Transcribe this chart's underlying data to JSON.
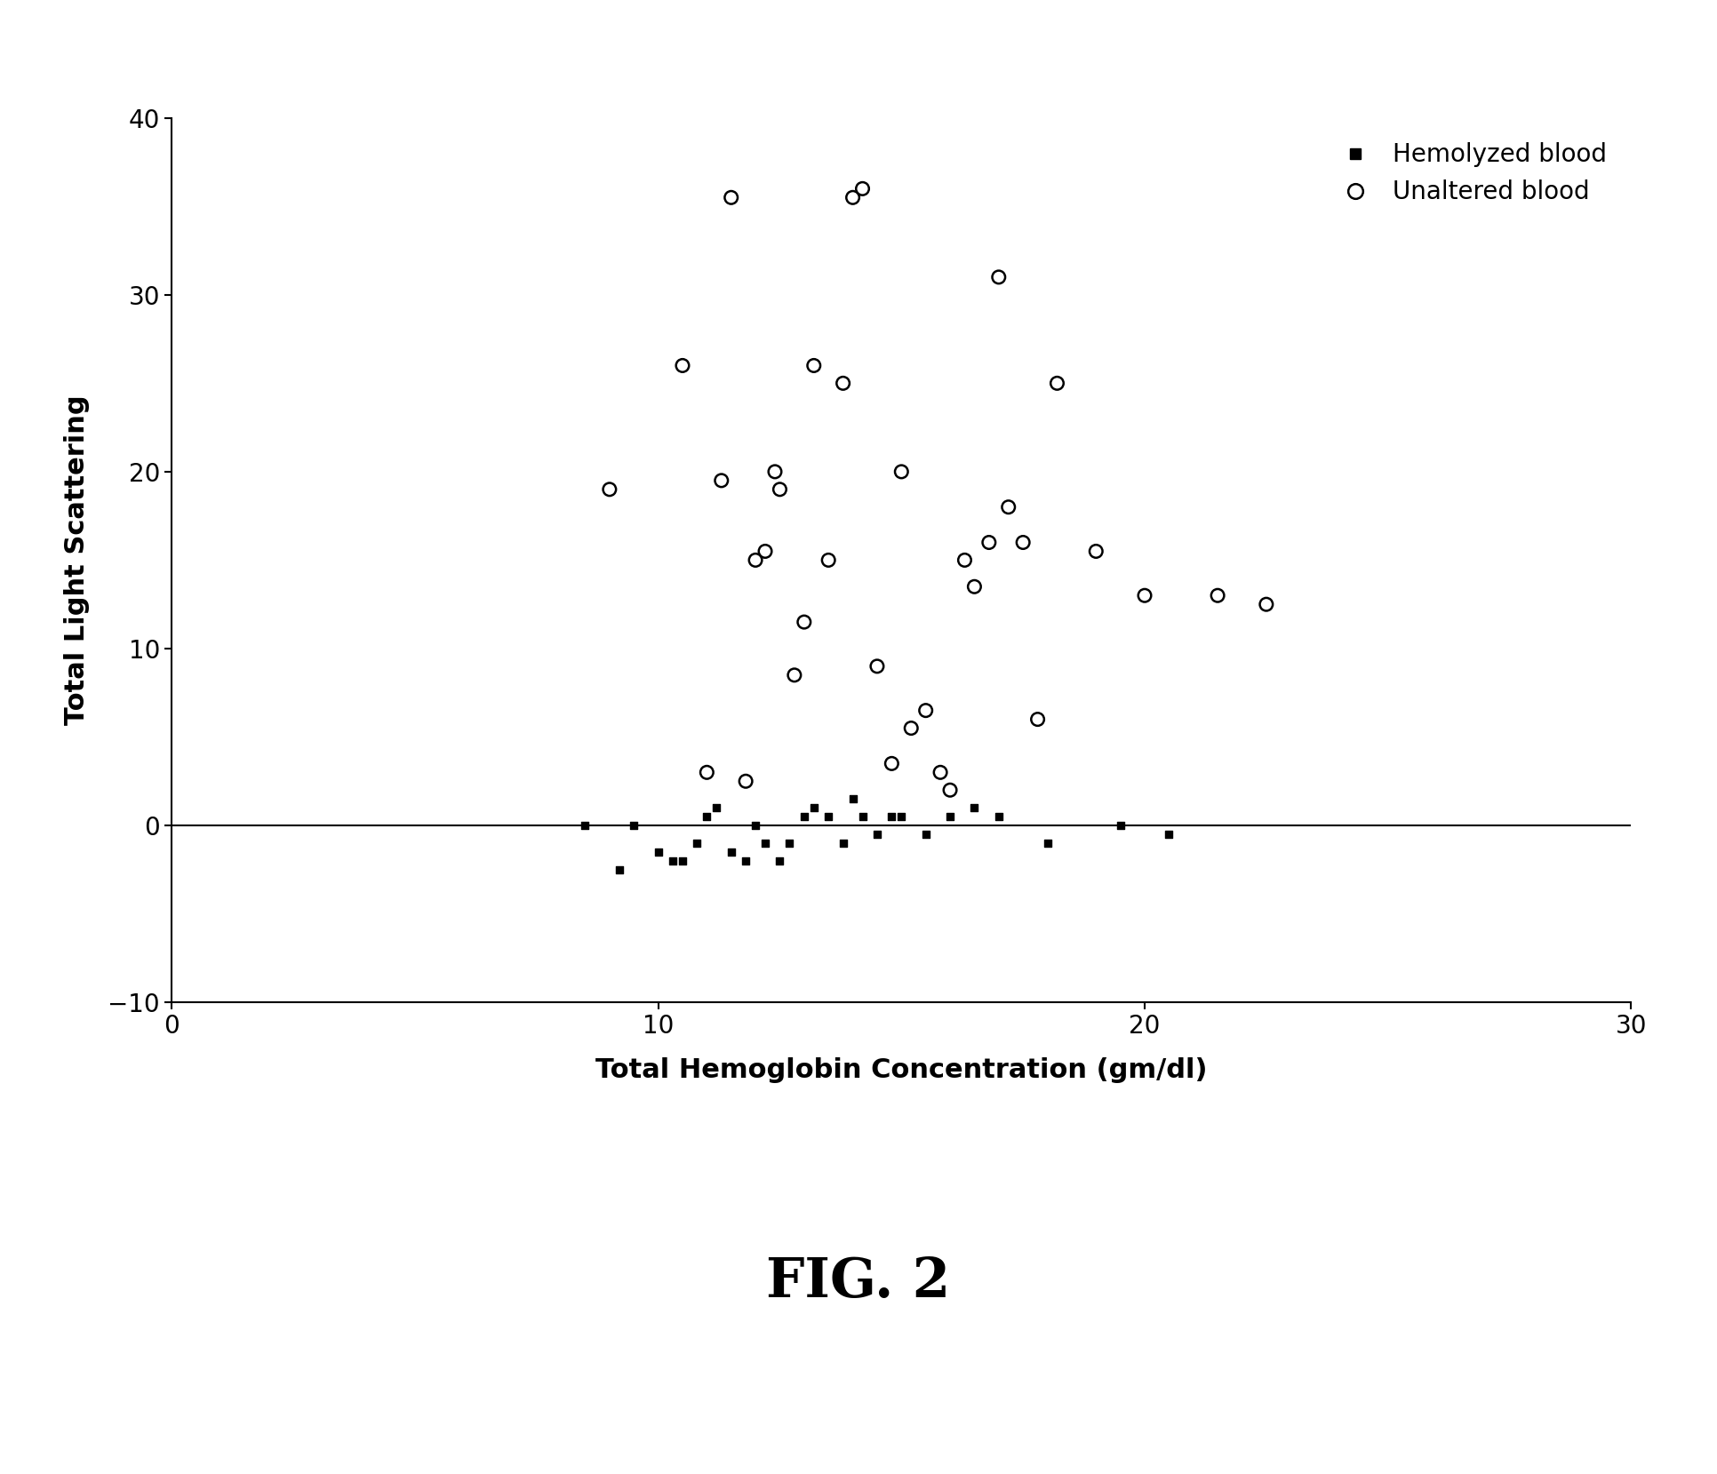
{
  "xlabel": "Total Hemoglobin Concentration (gm/dl)",
  "ylabel": "Total Light Scattering",
  "xlim": [
    0,
    30
  ],
  "ylim": [
    -10,
    40
  ],
  "xticks": [
    0,
    10,
    20,
    30
  ],
  "yticks": [
    -10,
    0,
    10,
    20,
    30,
    40
  ],
  "hline_y": 0,
  "unaltered_x": [
    9.0,
    10.5,
    11.0,
    11.3,
    11.5,
    11.8,
    12.0,
    12.2,
    12.4,
    12.5,
    12.8,
    13.0,
    13.2,
    13.5,
    13.8,
    14.0,
    14.2,
    14.5,
    14.8,
    15.0,
    15.2,
    15.5,
    15.8,
    16.0,
    16.3,
    16.5,
    16.8,
    17.0,
    17.2,
    17.5,
    17.8,
    18.2,
    19.0,
    20.0,
    21.5,
    22.5
  ],
  "unaltered_y": [
    19.0,
    26.0,
    3.0,
    19.5,
    35.5,
    2.5,
    15.0,
    15.5,
    20.0,
    19.0,
    8.5,
    11.5,
    26.0,
    15.0,
    25.0,
    35.5,
    36.0,
    9.0,
    3.5,
    20.0,
    5.5,
    6.5,
    3.0,
    2.0,
    15.0,
    13.5,
    16.0,
    31.0,
    18.0,
    16.0,
    6.0,
    25.0,
    15.5,
    13.0,
    13.0,
    12.5
  ],
  "hemolyzed_x": [
    8.5,
    9.2,
    9.5,
    10.0,
    10.3,
    10.5,
    10.8,
    11.0,
    11.2,
    11.5,
    11.8,
    12.0,
    12.2,
    12.5,
    12.7,
    13.0,
    13.2,
    13.5,
    13.8,
    14.0,
    14.2,
    14.5,
    14.8,
    15.0,
    15.5,
    16.0,
    16.5,
    17.0,
    18.0,
    19.5,
    20.5
  ],
  "hemolyzed_y": [
    0.0,
    -2.5,
    0.0,
    -1.5,
    -2.0,
    -2.0,
    -1.0,
    0.5,
    1.0,
    -1.5,
    -2.0,
    0.0,
    -1.0,
    -2.0,
    -1.0,
    0.5,
    1.0,
    0.5,
    -1.0,
    1.5,
    0.5,
    -0.5,
    0.5,
    0.5,
    -0.5,
    0.5,
    1.0,
    0.5,
    -1.0,
    0.0,
    -0.5
  ],
  "figure_label": "FIG. 2",
  "background_color": "#ffffff"
}
